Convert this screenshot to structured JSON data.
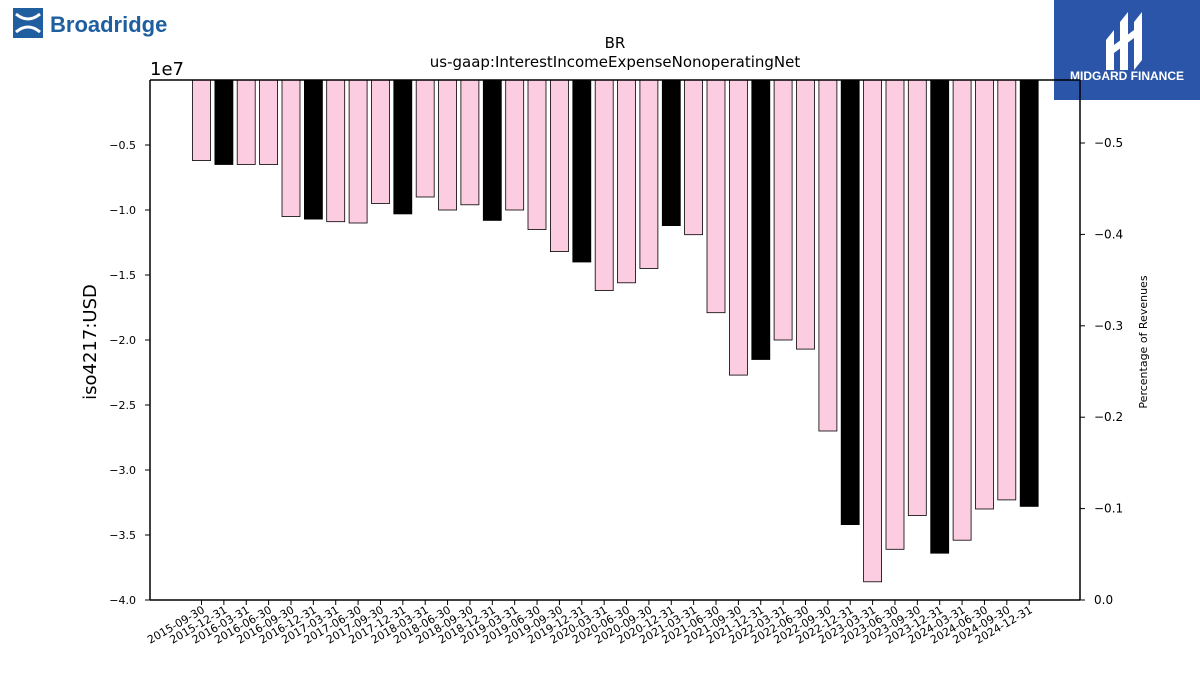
{
  "brand": {
    "left_logo_text": "Broadridge",
    "right_logo_text": "MIDGARD FINANCE",
    "left_color": "#1f5fa0",
    "right_bg": "#2a55a8"
  },
  "chart_data": {
    "type": "bar",
    "title": "BR",
    "subtitle": "us-gaap:InterestIncomeExpenseNonoperatingNet",
    "ylabel": "iso4217:USD",
    "ylabel_right": "Percentage of Revenues",
    "y_multiplier": "1e7",
    "ylim": [
      -4.0,
      0
    ],
    "y_ticks": [
      "−0.5",
      "−1.0",
      "−1.5",
      "−2.0",
      "−2.5",
      "−3.0",
      "−3.5",
      "−4.0"
    ],
    "y_right_ticks": [
      "−0.5",
      "−0.4",
      "−0.3",
      "−0.2",
      "−0.1",
      "0.0"
    ],
    "colors": {
      "quarter": "#fccce0",
      "annual": "#000000"
    },
    "categories": [
      "2015-09-30",
      "2015-12-31",
      "2016-03-31",
      "2016-06-30",
      "2016-09-30",
      "2016-12-31",
      "2017-03-31",
      "2017-06-30",
      "2017-09-30",
      "2017-12-31",
      "2018-03-31",
      "2018-06-30",
      "2018-09-30",
      "2018-12-31",
      "2019-03-31",
      "2019-06-30",
      "2019-09-30",
      "2019-12-31",
      "2020-03-31",
      "2020-06-30",
      "2020-09-30",
      "2020-12-31",
      "2021-03-31",
      "2021-06-30",
      "2021-09-30",
      "2021-12-31",
      "2022-03-31",
      "2022-06-30",
      "2022-09-30",
      "2022-12-31",
      "2023-03-31",
      "2023-06-30",
      "2023-09-30",
      "2023-12-31",
      "2024-03-31",
      "2024-06-30",
      "2024-09-30",
      "2024-12-31"
    ],
    "values": [
      -0.62,
      -0.65,
      -0.65,
      -0.65,
      -1.05,
      -1.07,
      -1.09,
      -1.1,
      -0.95,
      -1.03,
      -0.9,
      -1.0,
      -0.96,
      -1.08,
      -1.0,
      -1.15,
      -1.32,
      -1.4,
      -1.62,
      -1.56,
      -1.45,
      -1.12,
      -1.19,
      -1.79,
      -2.27,
      -2.15,
      -2.0,
      -2.07,
      -2.7,
      -3.42,
      -3.86,
      -3.61,
      -3.35,
      -3.64,
      -3.54,
      -3.3,
      -3.23,
      -3.28
    ],
    "annual": [
      false,
      true,
      false,
      false,
      false,
      true,
      false,
      false,
      false,
      true,
      false,
      false,
      false,
      true,
      false,
      false,
      false,
      true,
      false,
      false,
      false,
      true,
      false,
      false,
      false,
      true,
      false,
      false,
      false,
      true,
      false,
      false,
      false,
      true,
      false,
      false,
      false,
      true
    ]
  }
}
